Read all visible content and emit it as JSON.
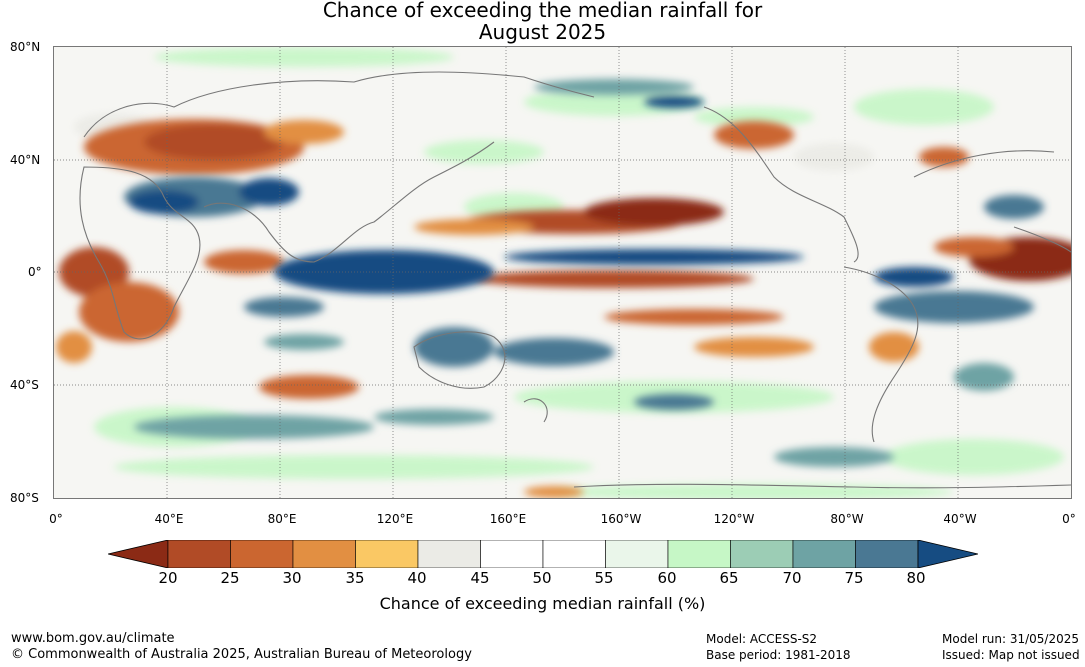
{
  "title": {
    "line1": "Chance of exceeding the median rainfall for",
    "line2": "August 2025"
  },
  "map": {
    "lat_labels": [
      "80°N",
      "40°N",
      "0°",
      "40°S",
      "80°S"
    ],
    "lon_labels": [
      "0°",
      "40°E",
      "80°E",
      "120°E",
      "160°E",
      "160°W",
      "120°W",
      "80°W",
      "40°W",
      "0°"
    ]
  },
  "colorbar": {
    "ticks": [
      "20",
      "25",
      "30",
      "35",
      "40",
      "45",
      "50",
      "55",
      "60",
      "65",
      "70",
      "75",
      "80"
    ],
    "colors": [
      "#8b2a15",
      "#b14b26",
      "#cb6630",
      "#e28f42",
      "#fac864",
      "#ebebe6",
      "#ffffff",
      "#ffffff",
      "#eaf6ea",
      "#c6f7c6",
      "#9ccdb5",
      "#6ea3a4",
      "#4a7893",
      "#164c82"
    ],
    "label": "Chance of exceeding median rainfall (%)"
  },
  "footer": {
    "site": "www.bom.gov.au/climate",
    "copyright": "© Commonwealth of Australia 2025, Australian Bureau of Meteorology",
    "model": "Model: ACCESS-S2",
    "base_period": "Base period: 1981-2018",
    "model_run": "Model run: 31/05/2025",
    "issued": "Issued: Map not issued"
  }
}
